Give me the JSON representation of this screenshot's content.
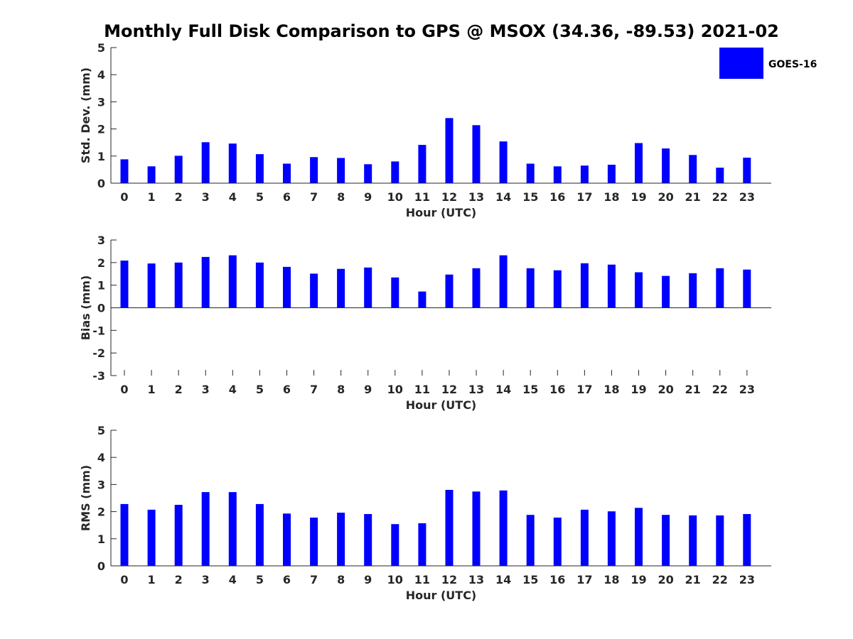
{
  "title": "Monthly Full Disk Comparison to GPS @ MSOX (34.36, -89.53) 2021-02",
  "colors": {
    "bar": "#0000ff",
    "axis": "#262626",
    "background": "#ffffff"
  },
  "legend": {
    "label": "GOES-16",
    "placement": "top-right"
  },
  "chart_data": [
    {
      "type": "bar",
      "xlabel": "Hour (UTC)",
      "ylabel": "Std. Dev. (mm)",
      "ylim": [
        0,
        5
      ],
      "yticks": [
        "0",
        "1",
        "2",
        "3",
        "4",
        "5"
      ],
      "categories": [
        "0",
        "1",
        "2",
        "3",
        "4",
        "5",
        "6",
        "7",
        "8",
        "9",
        "10",
        "11",
        "12",
        "13",
        "14",
        "15",
        "16",
        "17",
        "18",
        "19",
        "20",
        "21",
        "22",
        "23"
      ],
      "series": [
        {
          "name": "GOES-16",
          "values": [
            0.88,
            0.62,
            1.01,
            1.51,
            1.46,
            1.07,
            0.72,
            0.96,
            0.93,
            0.7,
            0.8,
            1.41,
            2.4,
            2.14,
            1.54,
            0.72,
            0.62,
            0.65,
            0.68,
            1.48,
            1.28,
            1.04,
            0.57,
            0.94
          ]
        }
      ],
      "grid": false
    },
    {
      "type": "bar",
      "xlabel": "Hour (UTC)",
      "ylabel": "Bias (mm)",
      "ylim": [
        -3,
        3
      ],
      "yticks": [
        "-3",
        "-2",
        "-1",
        "0",
        "1",
        "2",
        "3"
      ],
      "categories": [
        "0",
        "1",
        "2",
        "3",
        "4",
        "5",
        "6",
        "7",
        "8",
        "9",
        "10",
        "11",
        "12",
        "13",
        "14",
        "15",
        "16",
        "17",
        "18",
        "19",
        "20",
        "21",
        "22",
        "23"
      ],
      "series": [
        {
          "name": "GOES-16",
          "values": [
            2.09,
            1.96,
            2.0,
            2.25,
            2.32,
            2.0,
            1.81,
            1.51,
            1.72,
            1.78,
            1.34,
            0.72,
            1.47,
            1.75,
            2.32,
            1.75,
            1.66,
            1.97,
            1.91,
            1.57,
            1.41,
            1.53,
            1.75,
            1.69
          ]
        }
      ],
      "grid": false
    },
    {
      "type": "bar",
      "xlabel": "Hour (UTC)",
      "ylabel": "RMS (mm)",
      "ylim": [
        0,
        5
      ],
      "yticks": [
        "0",
        "1",
        "2",
        "3",
        "4",
        "5"
      ],
      "categories": [
        "0",
        "1",
        "2",
        "3",
        "4",
        "5",
        "6",
        "7",
        "8",
        "9",
        "10",
        "11",
        "12",
        "13",
        "14",
        "15",
        "16",
        "17",
        "18",
        "19",
        "20",
        "21",
        "22",
        "23"
      ],
      "series": [
        {
          "name": "GOES-16",
          "values": [
            2.28,
            2.07,
            2.25,
            2.72,
            2.72,
            2.28,
            1.93,
            1.78,
            1.96,
            1.91,
            1.54,
            1.57,
            2.8,
            2.74,
            2.78,
            1.88,
            1.78,
            2.07,
            2.01,
            2.14,
            1.88,
            1.86,
            1.86,
            1.91
          ]
        }
      ],
      "grid": false
    }
  ]
}
